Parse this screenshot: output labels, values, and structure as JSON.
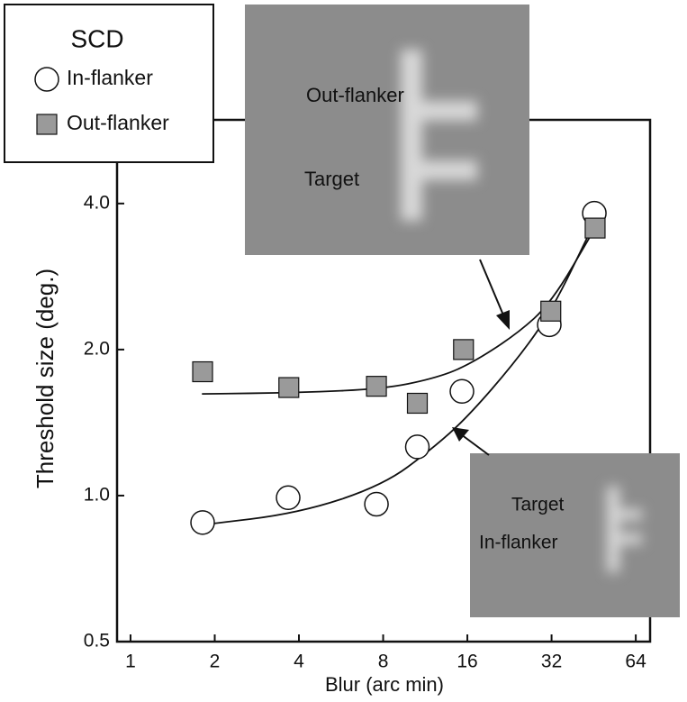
{
  "chart_data": {
    "type": "scatter",
    "xlabel": "Blur (arc min)",
    "ylabel": "Threshold size (deg.)",
    "legend_title": "SCD",
    "xlog": true,
    "ylog": true,
    "xlim": [
      0.895,
      72
    ],
    "ylim": [
      0.5,
      5.95
    ],
    "xticks": [
      1,
      2,
      4,
      8,
      16,
      32,
      64
    ],
    "yticks": [
      0.5,
      {
        "value": 1,
        "label": "1.0"
      },
      {
        "value": 2,
        "label": "2.0"
      },
      {
        "value": 4,
        "label": "4.0"
      }
    ],
    "series": [
      {
        "name": "In-flanker",
        "marker": "circle",
        "color": "#ffffff",
        "x": [
          1.81,
          3.66,
          7.57,
          10.6,
          15.3,
          31.4,
          45.5
        ],
        "values": [
          0.88,
          0.99,
          0.96,
          1.26,
          1.64,
          2.25,
          3.82
        ],
        "fit": {
          "x": [
            1.8,
            4,
            8,
            12,
            16,
            24,
            32,
            45
          ],
          "values": [
            0.87,
            0.92,
            1.05,
            1.25,
            1.45,
            1.9,
            2.4,
            3.6
          ]
        }
      },
      {
        "name": "Out-flanker",
        "marker": "square",
        "color": "#9a9a9a",
        "x": [
          1.81,
          3.68,
          7.57,
          10.6,
          15.5,
          31.8,
          45.8
        ],
        "values": [
          1.8,
          1.67,
          1.68,
          1.55,
          2.0,
          2.4,
          3.56
        ],
        "fit": {
          "x": [
            1.8,
            4,
            8,
            12,
            16,
            24,
            32,
            45
          ],
          "values": [
            1.62,
            1.63,
            1.66,
            1.74,
            1.85,
            2.15,
            2.5,
            3.5
          ]
        }
      }
    ],
    "annotations": {
      "inset_top": [
        "Out-flanker",
        "Target"
      ],
      "inset_bottom": [
        "Target",
        "In-flanker"
      ]
    }
  }
}
